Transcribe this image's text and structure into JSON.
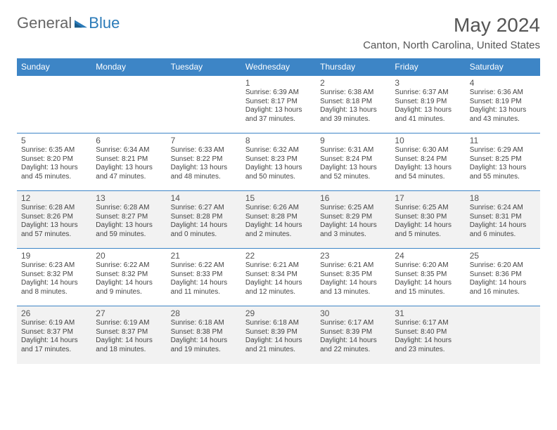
{
  "brand": {
    "general": "General",
    "blue": "Blue"
  },
  "title": "May 2024",
  "location": "Canton, North Carolina, United States",
  "colors": {
    "header_bg": "#3d85c6",
    "header_fg": "#ffffff",
    "row_alt_bg": "#f2f2f2",
    "border": "#3d85c6",
    "logo_blue": "#2a7ab8",
    "logo_grey": "#666666"
  },
  "day_headers": [
    "Sunday",
    "Monday",
    "Tuesday",
    "Wednesday",
    "Thursday",
    "Friday",
    "Saturday"
  ],
  "weeks": [
    [
      null,
      null,
      null,
      {
        "n": "1",
        "sr": "6:39 AM",
        "ss": "8:17 PM",
        "dl": "13 hours and 37 minutes."
      },
      {
        "n": "2",
        "sr": "6:38 AM",
        "ss": "8:18 PM",
        "dl": "13 hours and 39 minutes."
      },
      {
        "n": "3",
        "sr": "6:37 AM",
        "ss": "8:19 PM",
        "dl": "13 hours and 41 minutes."
      },
      {
        "n": "4",
        "sr": "6:36 AM",
        "ss": "8:19 PM",
        "dl": "13 hours and 43 minutes."
      }
    ],
    [
      {
        "n": "5",
        "sr": "6:35 AM",
        "ss": "8:20 PM",
        "dl": "13 hours and 45 minutes."
      },
      {
        "n": "6",
        "sr": "6:34 AM",
        "ss": "8:21 PM",
        "dl": "13 hours and 47 minutes."
      },
      {
        "n": "7",
        "sr": "6:33 AM",
        "ss": "8:22 PM",
        "dl": "13 hours and 48 minutes."
      },
      {
        "n": "8",
        "sr": "6:32 AM",
        "ss": "8:23 PM",
        "dl": "13 hours and 50 minutes."
      },
      {
        "n": "9",
        "sr": "6:31 AM",
        "ss": "8:24 PM",
        "dl": "13 hours and 52 minutes."
      },
      {
        "n": "10",
        "sr": "6:30 AM",
        "ss": "8:24 PM",
        "dl": "13 hours and 54 minutes."
      },
      {
        "n": "11",
        "sr": "6:29 AM",
        "ss": "8:25 PM",
        "dl": "13 hours and 55 minutes."
      }
    ],
    [
      {
        "n": "12",
        "sr": "6:28 AM",
        "ss": "8:26 PM",
        "dl": "13 hours and 57 minutes."
      },
      {
        "n": "13",
        "sr": "6:28 AM",
        "ss": "8:27 PM",
        "dl": "13 hours and 59 minutes."
      },
      {
        "n": "14",
        "sr": "6:27 AM",
        "ss": "8:28 PM",
        "dl": "14 hours and 0 minutes."
      },
      {
        "n": "15",
        "sr": "6:26 AM",
        "ss": "8:28 PM",
        "dl": "14 hours and 2 minutes."
      },
      {
        "n": "16",
        "sr": "6:25 AM",
        "ss": "8:29 PM",
        "dl": "14 hours and 3 minutes."
      },
      {
        "n": "17",
        "sr": "6:25 AM",
        "ss": "8:30 PM",
        "dl": "14 hours and 5 minutes."
      },
      {
        "n": "18",
        "sr": "6:24 AM",
        "ss": "8:31 PM",
        "dl": "14 hours and 6 minutes."
      }
    ],
    [
      {
        "n": "19",
        "sr": "6:23 AM",
        "ss": "8:32 PM",
        "dl": "14 hours and 8 minutes."
      },
      {
        "n": "20",
        "sr": "6:22 AM",
        "ss": "8:32 PM",
        "dl": "14 hours and 9 minutes."
      },
      {
        "n": "21",
        "sr": "6:22 AM",
        "ss": "8:33 PM",
        "dl": "14 hours and 11 minutes."
      },
      {
        "n": "22",
        "sr": "6:21 AM",
        "ss": "8:34 PM",
        "dl": "14 hours and 12 minutes."
      },
      {
        "n": "23",
        "sr": "6:21 AM",
        "ss": "8:35 PM",
        "dl": "14 hours and 13 minutes."
      },
      {
        "n": "24",
        "sr": "6:20 AM",
        "ss": "8:35 PM",
        "dl": "14 hours and 15 minutes."
      },
      {
        "n": "25",
        "sr": "6:20 AM",
        "ss": "8:36 PM",
        "dl": "14 hours and 16 minutes."
      }
    ],
    [
      {
        "n": "26",
        "sr": "6:19 AM",
        "ss": "8:37 PM",
        "dl": "14 hours and 17 minutes."
      },
      {
        "n": "27",
        "sr": "6:19 AM",
        "ss": "8:37 PM",
        "dl": "14 hours and 18 minutes."
      },
      {
        "n": "28",
        "sr": "6:18 AM",
        "ss": "8:38 PM",
        "dl": "14 hours and 19 minutes."
      },
      {
        "n": "29",
        "sr": "6:18 AM",
        "ss": "8:39 PM",
        "dl": "14 hours and 21 minutes."
      },
      {
        "n": "30",
        "sr": "6:17 AM",
        "ss": "8:39 PM",
        "dl": "14 hours and 22 minutes."
      },
      {
        "n": "31",
        "sr": "6:17 AM",
        "ss": "8:40 PM",
        "dl": "14 hours and 23 minutes."
      },
      null
    ]
  ]
}
